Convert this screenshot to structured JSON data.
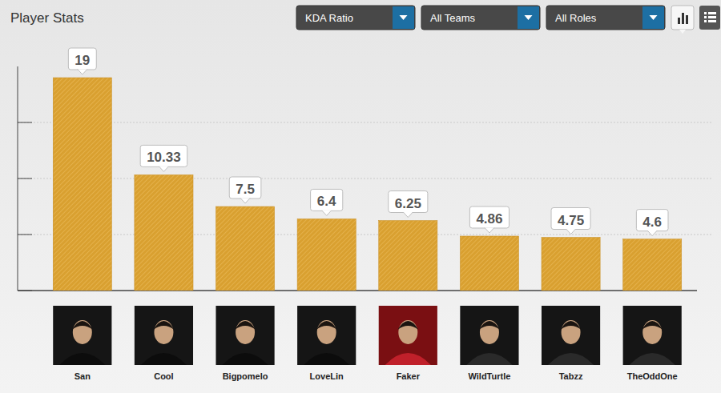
{
  "chart_data": {
    "type": "bar",
    "title": "Player Stats",
    "categories": [
      "San",
      "Cool",
      "Bigpomelo",
      "LoveLin",
      "Faker",
      "WildTurtle",
      "Tabzz",
      "TheOddOne"
    ],
    "values": [
      19,
      10.33,
      7.5,
      6.4,
      6.25,
      4.86,
      4.75,
      4.6
    ],
    "color": "#d9a030",
    "ylim": [
      0,
      20
    ],
    "yticks": [
      0,
      5,
      10,
      15
    ],
    "grid": true,
    "data_labels": true,
    "tick_labels": "x"
  },
  "controls": {
    "filters": [
      "KDA Ratio",
      "All Teams",
      "All Roles"
    ]
  }
}
